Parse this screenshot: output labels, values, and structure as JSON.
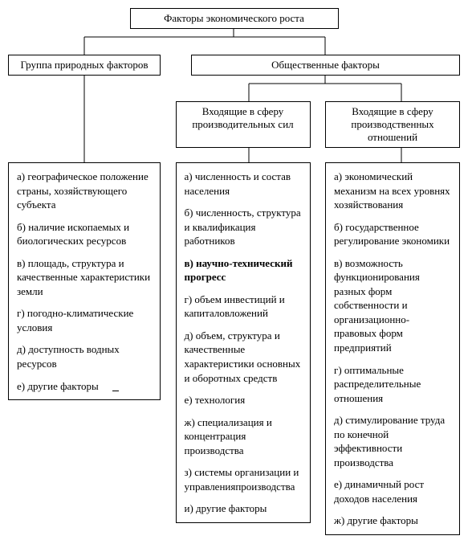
{
  "diagram": {
    "type": "tree",
    "background_color": "#ffffff",
    "border_color": "#000000",
    "text_color": "#000000",
    "font_family": "Times New Roman",
    "font_size_pt": 10,
    "root": {
      "label": "Факторы экономического роста"
    },
    "level2": {
      "natural": {
        "label": "Группа природных факторов"
      },
      "social": {
        "label": "Общественные факторы"
      }
    },
    "level3": {
      "prod_forces": {
        "label": "Входящие в сферу производительных сил"
      },
      "prod_relations": {
        "label": "Входящие в сферу производственных отношений"
      }
    },
    "lists": {
      "natural": [
        "а) географическое положение страны, хозяйствующего субъекта",
        "б) наличие ископаемых и биологических ресурсов",
        "в) площадь, структура и качественные характеристики земли",
        "г) погодно-климатические условия",
        "д) доступность водных ресурсов",
        "е) другие факторы"
      ],
      "prod_forces": [
        {
          "text": "а) численность и состав населения",
          "bold": false
        },
        {
          "text": "б) численность, структура и квалификация работников",
          "bold": false
        },
        {
          "text": "в) научно-технический прогресс",
          "bold": true
        },
        {
          "text": "г) объем инвестиций и капиталовложений",
          "bold": false
        },
        {
          "text": "д) объем, структура и качественные характеристики основных и оборотных средств",
          "bold": false
        },
        {
          "text": "е) технология",
          "bold": false
        },
        {
          "text": "ж) специализация и концентрация производства",
          "bold": false
        },
        {
          "text": "з) системы организации и управленияпроизводства",
          "bold": false
        },
        {
          "text": "и) другие факторы",
          "bold": false
        }
      ],
      "prod_relations": [
        "а) экономический механизм на всех уровнях хозяйствования",
        "б) государственное регулирование экономики",
        "в) возможность функционирования разных форм собственности и организационно-правовых форм предприятий",
        "г) оптимальные распределительные отношения",
        "д) стимулирование труда по конечной эффективности производства",
        "е) динамичный рост доходов населения",
        "ж) другие факторы"
      ]
    }
  }
}
